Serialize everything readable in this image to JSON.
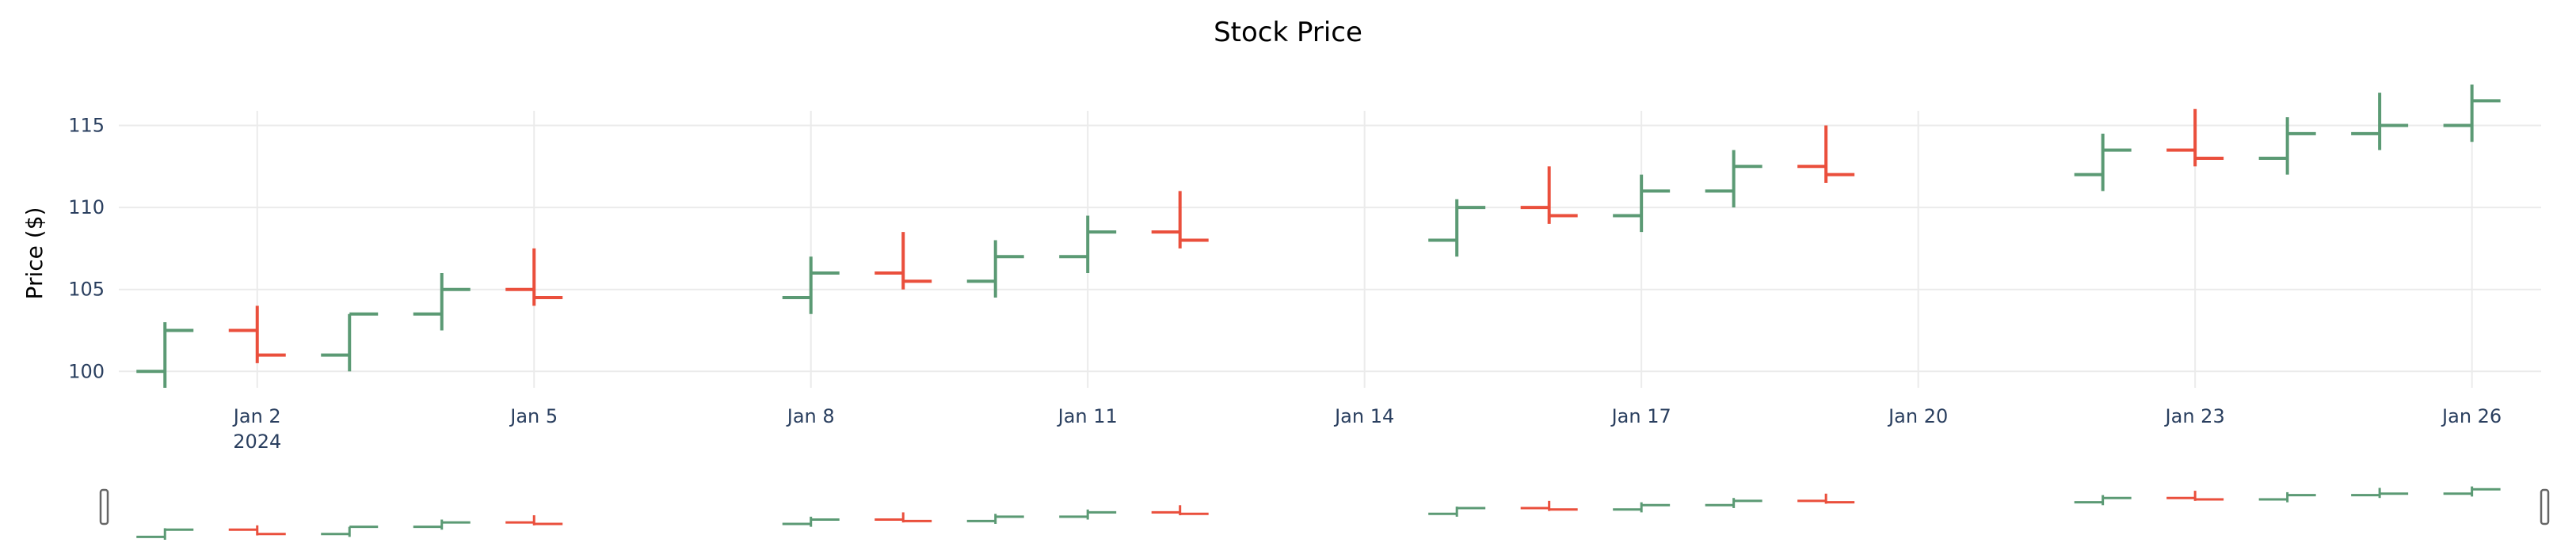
{
  "chart_data": {
    "type": "ohlc",
    "title": "Stock Price",
    "ylabel": "Price ($)",
    "xlabel": "",
    "ylim": [
      99,
      118.5
    ],
    "grid": true,
    "x_tick_labels": [
      "Jan 2",
      "Jan 5",
      "Jan 8",
      "Jan 11",
      "Jan 14",
      "Jan 17",
      "Jan 20",
      "Jan 23",
      "Jan 26"
    ],
    "x_year_label": "2024",
    "y_tick_labels": [
      "100",
      "105",
      "110",
      "115"
    ],
    "increasing_color": "#5b9a74",
    "decreasing_color": "#ea4f3c",
    "rangeslider": true,
    "series": [
      {
        "x": "2024-01-01",
        "open": 100.0,
        "high": 103.0,
        "low": 99.0,
        "close": 102.5
      },
      {
        "x": "2024-01-02",
        "open": 102.5,
        "high": 104.0,
        "low": 100.5,
        "close": 101.0
      },
      {
        "x": "2024-01-03",
        "open": 101.0,
        "high": 103.5,
        "low": 100.0,
        "close": 103.5
      },
      {
        "x": "2024-01-04",
        "open": 103.5,
        "high": 106.0,
        "low": 102.5,
        "close": 105.0
      },
      {
        "x": "2024-01-05",
        "open": 105.0,
        "high": 107.5,
        "low": 104.0,
        "close": 104.5
      },
      {
        "x": "2024-01-08",
        "open": 104.5,
        "high": 107.0,
        "low": 103.5,
        "close": 106.0
      },
      {
        "x": "2024-01-09",
        "open": 106.0,
        "high": 108.5,
        "low": 105.0,
        "close": 105.5
      },
      {
        "x": "2024-01-10",
        "open": 105.5,
        "high": 108.0,
        "low": 104.5,
        "close": 107.0
      },
      {
        "x": "2024-01-11",
        "open": 107.0,
        "high": 109.5,
        "low": 106.0,
        "close": 108.5
      },
      {
        "x": "2024-01-12",
        "open": 108.5,
        "high": 111.0,
        "low": 107.5,
        "close": 108.0
      },
      {
        "x": "2024-01-15",
        "open": 108.0,
        "high": 110.5,
        "low": 107.0,
        "close": 110.0
      },
      {
        "x": "2024-01-16",
        "open": 110.0,
        "high": 112.5,
        "low": 109.0,
        "close": 109.5
      },
      {
        "x": "2024-01-17",
        "open": 109.5,
        "high": 112.0,
        "low": 108.5,
        "close": 111.0
      },
      {
        "x": "2024-01-18",
        "open": 111.0,
        "high": 113.5,
        "low": 110.0,
        "close": 112.5
      },
      {
        "x": "2024-01-19",
        "open": 112.5,
        "high": 115.0,
        "low": 111.5,
        "close": 112.0
      },
      {
        "x": "2024-01-22",
        "open": 112.0,
        "high": 114.5,
        "low": 111.0,
        "close": 113.5
      },
      {
        "x": "2024-01-23",
        "open": 113.5,
        "high": 116.0,
        "low": 112.5,
        "close": 113.0
      },
      {
        "x": "2024-01-24",
        "open": 113.0,
        "high": 115.5,
        "low": 112.0,
        "close": 114.5
      },
      {
        "x": "2024-01-25",
        "open": 114.5,
        "high": 117.0,
        "low": 113.5,
        "close": 115.0
      },
      {
        "x": "2024-01-26",
        "open": 115.0,
        "high": 117.5,
        "low": 114.0,
        "close": 116.5
      }
    ]
  }
}
